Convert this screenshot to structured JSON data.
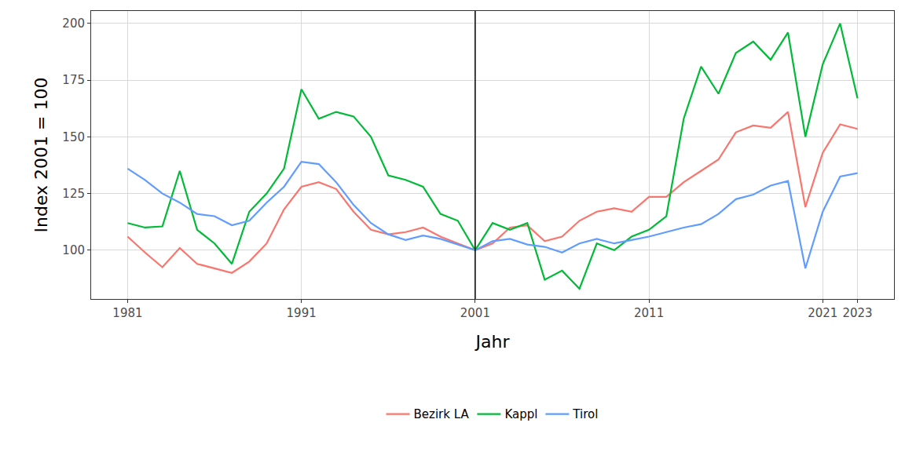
{
  "chart_data": {
    "type": "line",
    "x_label": "Jahr",
    "y_label": "Index 2001 = 100",
    "x": [
      1981,
      1982,
      1983,
      1984,
      1985,
      1986,
      1987,
      1988,
      1989,
      1990,
      1991,
      1992,
      1993,
      1994,
      1995,
      1996,
      1997,
      1998,
      1999,
      2000,
      2001,
      2002,
      2003,
      2004,
      2005,
      2006,
      2007,
      2008,
      2009,
      2010,
      2011,
      2012,
      2013,
      2014,
      2015,
      2016,
      2017,
      2018,
      2019,
      2020,
      2021,
      2022,
      2023
    ],
    "series": [
      {
        "name": "Bezirk LA",
        "color": "#F8766D",
        "values": [
          106,
          99,
          92.5,
          101,
          94,
          92,
          90,
          95,
          103,
          118,
          128,
          130,
          127,
          117,
          109,
          107,
          108,
          110,
          106,
          103,
          100,
          103,
          110,
          111,
          104,
          106,
          113,
          117,
          118.5,
          117,
          123.5,
          123.5,
          130,
          135,
          140,
          152,
          155,
          154,
          161,
          119,
          143,
          155.5,
          153.5
        ]
      },
      {
        "name": "Kappl",
        "color": "#00BA38",
        "values": [
          112,
          110,
          110.5,
          135,
          109,
          103,
          94,
          117,
          125,
          136,
          171,
          158,
          161,
          159,
          150,
          133,
          131,
          128,
          116,
          113,
          100,
          112,
          109,
          112,
          87,
          91,
          83,
          103,
          100,
          106,
          109,
          115,
          158,
          181,
          169,
          187,
          192,
          184,
          196,
          150,
          182,
          200,
          167
        ]
      },
      {
        "name": "Tirol",
        "color": "#619CFF",
        "values": [
          136,
          131,
          125,
          121,
          116,
          115,
          111,
          113,
          121,
          128,
          139,
          138,
          130,
          120,
          112,
          107,
          104.5,
          106.5,
          105,
          102.5,
          100,
          104,
          105,
          102.5,
          101.5,
          99,
          103,
          105,
          103,
          104.5,
          106,
          108,
          110,
          111.5,
          116,
          122.5,
          124.5,
          128.5,
          130.5,
          92,
          117,
          132.5,
          134
        ]
      }
    ],
    "xlim": [
      1978.9,
      2025.1
    ],
    "xticks": [
      1981,
      1991,
      2001,
      2011,
      2021,
      2023
    ],
    "ylim": [
      78.5,
      205.5
    ],
    "yticks": [
      100,
      125,
      150,
      175,
      200
    ],
    "vlines": [
      2001
    ],
    "grid": true,
    "legend": "bottom"
  }
}
